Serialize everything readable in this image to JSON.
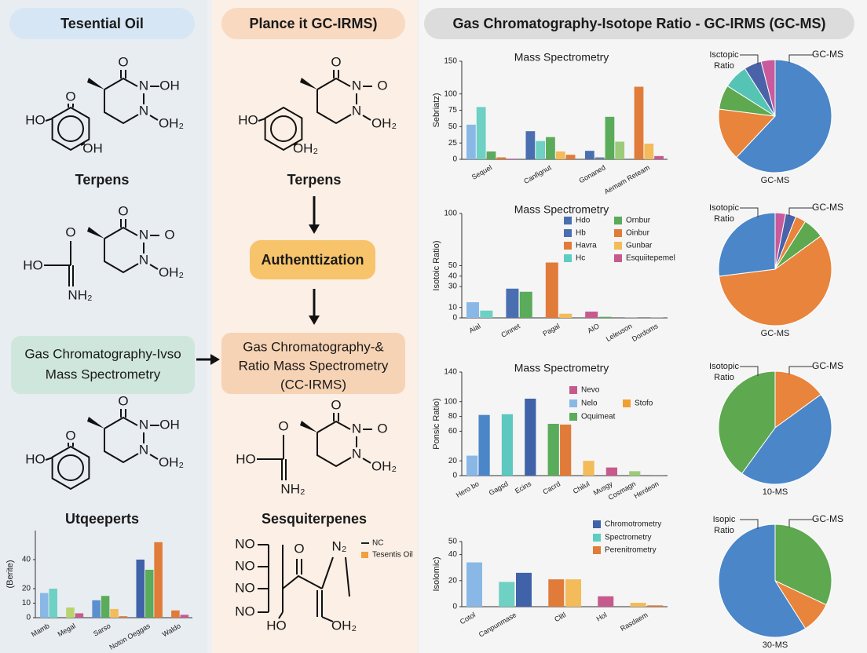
{
  "left": {
    "header": "Tesential Oil",
    "molecule_1": {
      "ketone_o": "O",
      "n1": "N",
      "n1_sub": "OH",
      "n2": "N",
      "n2_sub": "OH₂",
      "ring_top": "O",
      "ring_left": "HO",
      "ring_bottom": "OH"
    },
    "caption_1": "Terpens",
    "molecule_2": {
      "ketone_o": "O",
      "n1": "N",
      "n1_sub": "O",
      "n2": "N",
      "n2_sub": "OH₂",
      "left_top": "O",
      "left_left": "HO",
      "left_bottom": "NH₂"
    },
    "box": [
      "Gas Chromatography-Ivso",
      "Mass Spectrometry"
    ],
    "molecule_3": {
      "ketone_o": "O",
      "n1": "N",
      "n1_sub": "OH",
      "n2": "N",
      "n2_sub": "OH₂",
      "ring_top": "O",
      "ring_left": "HO"
    },
    "caption_2": "Utqeeperts",
    "chart": {
      "ylabel": "(Berite)",
      "ylim": [
        0,
        60
      ],
      "yticks": [
        0,
        10,
        20,
        40
      ],
      "groups": [
        {
          "label": "Mamb",
          "bars": [
            {
              "value": 17,
              "color": "#8ab8e6"
            },
            {
              "value": 20,
              "color": "#6fd0c4"
            }
          ]
        },
        {
          "label": "Megal",
          "bars": [
            {
              "value": 7,
              "color": "#b9d46e"
            },
            {
              "value": 3,
              "color": "#c75a8c"
            }
          ]
        },
        {
          "label": "Sarso",
          "bars": [
            {
              "value": 12,
              "color": "#5b8fd0"
            },
            {
              "value": 15,
              "color": "#5aab5a"
            },
            {
              "value": 6,
              "color": "#f3bb5a"
            },
            {
              "value": 1,
              "color": "#e07b39"
            }
          ]
        },
        {
          "label": "Noton Oeggas",
          "bars": [
            {
              "value": 40,
              "color": "#3f62a8"
            },
            {
              "value": 33,
              "color": "#5aab5a"
            },
            {
              "value": 52,
              "color": "#e07b39"
            }
          ]
        },
        {
          "label": "Waldo",
          "bars": [
            {
              "value": 5,
              "color": "#e07b39"
            },
            {
              "value": 2,
              "color": "#c75a8c"
            }
          ]
        }
      ]
    }
  },
  "middle": {
    "header": "Plance it GC-IRMS)",
    "molecule_1": {
      "ketone_o": "O",
      "n1": "N",
      "n1_sub": "O",
      "n2": "N",
      "n2_sub": "OH₂",
      "ring_left": "HO",
      "ring_bottom": "OH₂"
    },
    "caption_1": "Terpens",
    "step": "Authenttization",
    "box": [
      "Gas Chromatography-&",
      "Ratio Mass Spectrometry",
      "(CC-IRMS)"
    ],
    "molecule_2": {
      "ketone_o": "O",
      "n1": "N",
      "n1_sub": "O",
      "n2": "N",
      "n2_sub": "OH₂",
      "left_top": "O",
      "left_left": "HO",
      "left_bottom": "NH₂"
    },
    "caption_2": "Sesquiterpenes",
    "molecule_3": [
      "NO",
      "NO",
      "NO",
      "NO",
      "O",
      "N₂",
      "HO",
      "OH₂"
    ],
    "legend": [
      {
        "label": "NC",
        "color": "#222222"
      },
      {
        "label": "Tesentis Oil",
        "color": "#f0a040"
      }
    ]
  },
  "right": {
    "header": "Gas Chromatography-Isotope Ratio - GC-IRMS (GC-MS)",
    "panels": [
      {
        "chart": {
          "title": "Mass Spectrometry",
          "ylabel": "Sebriatz)",
          "ylim": [
            0,
            150
          ],
          "yticks": [
            0,
            25,
            50,
            75,
            100,
            150
          ],
          "groups": [
            {
              "label": "Sequel",
              "bars": [
                {
                  "value": 53,
                  "color": "#8ab8e6"
                },
                {
                  "value": 80,
                  "color": "#6fd0c4"
                },
                {
                  "value": 12,
                  "color": "#5aab5a"
                },
                {
                  "value": 3,
                  "color": "#e07b39"
                },
                {
                  "value": 1,
                  "color": "#c75a8c"
                }
              ]
            },
            {
              "label": "Canfignut",
              "bars": [
                {
                  "value": 43,
                  "color": "#4a6fb0"
                },
                {
                  "value": 28,
                  "color": "#6fd0c4"
                },
                {
                  "value": 34,
                  "color": "#5aab5a"
                },
                {
                  "value": 12,
                  "color": "#f3bb5a"
                },
                {
                  "value": 7,
                  "color": "#e07b39"
                }
              ]
            },
            {
              "label": "Gonaned",
              "bars": [
                {
                  "value": 13,
                  "color": "#4a6fb0"
                },
                {
                  "value": 3,
                  "color": "#6b7fa0"
                },
                {
                  "value": 65,
                  "color": "#5aab5a"
                },
                {
                  "value": 27,
                  "color": "#9ccc7a"
                }
              ]
            },
            {
              "label": "Aemam Reteam",
              "bars": [
                {
                  "value": 111,
                  "color": "#e07b39"
                },
                {
                  "value": 24,
                  "color": "#f3bb5a"
                },
                {
                  "value": 5,
                  "color": "#c75a8c"
                }
              ]
            }
          ]
        },
        "pie": {
          "label_left": [
            "Isctopic",
            "Ratio"
          ],
          "label_right": "GC-MS",
          "caption": "GC-MS",
          "slices": [
            {
              "value": 62,
              "color": "#4a86c8"
            },
            {
              "value": 15,
              "color": "#e8843c"
            },
            {
              "value": 7,
              "color": "#5ea84f"
            },
            {
              "value": 7,
              "color": "#55c4b4"
            },
            {
              "value": 5,
              "color": "#4a63a8"
            },
            {
              "value": 4,
              "color": "#c95a9c"
            }
          ]
        }
      },
      {
        "chart": {
          "title": "Mass Spectrometry",
          "ylabel": "Isotoic Ratio)",
          "ylim": [
            0,
            100
          ],
          "yticks": [
            0,
            10,
            30,
            40,
            50,
            100
          ],
          "groups": [
            {
              "label": "Aial",
              "bars": [
                {
                  "value": 15,
                  "color": "#8ab8e6"
                },
                {
                  "value": 7,
                  "color": "#6fd0c4"
                }
              ]
            },
            {
              "label": "Cinnet",
              "bars": [
                {
                  "value": 28,
                  "color": "#4a6fb0"
                },
                {
                  "value": 25,
                  "color": "#5aab5a"
                }
              ]
            },
            {
              "label": "Pagal",
              "bars": [
                {
                  "value": 53,
                  "color": "#e07b39"
                },
                {
                  "value": 4,
                  "color": "#f3bb5a"
                }
              ]
            },
            {
              "label": "AIO",
              "bars": [
                {
                  "value": 6,
                  "color": "#c75a8c"
                },
                {
                  "value": 1,
                  "color": "#5aab5a"
                }
              ]
            },
            {
              "label": "Leleuson",
              "bars": [
                {
                  "value": 0.5,
                  "color": "#999999"
                }
              ]
            },
            {
              "label": "Dordoms",
              "bars": [
                {
                  "value": 0.5,
                  "color": "#999999"
                }
              ]
            }
          ],
          "legend": [
            {
              "label": "Hdo",
              "color": "#4a6fb0"
            },
            {
              "label": "Hb",
              "color": "#4a6fb0"
            },
            {
              "label": "Havra",
              "color": "#e07b39"
            },
            {
              "label": "Hc",
              "color": "#5ccdc0"
            },
            {
              "label": "Ornbur",
              "color": "#5aab5a"
            },
            {
              "label": "Oinbur",
              "color": "#e07b39"
            },
            {
              "label": "Gunbar",
              "color": "#f3bb5a"
            },
            {
              "label": "Esquiitepemel",
              "color": "#c75a8c"
            }
          ]
        },
        "pie": {
          "label_left": [
            "Isotopic",
            "Ratio"
          ],
          "label_right": "GC-MS",
          "caption": "GC-MS",
          "slices": [
            {
              "value": 3,
              "color": "#c95a9c"
            },
            {
              "value": 3,
              "color": "#4a63a8"
            },
            {
              "value": 3,
              "color": "#e8843c"
            },
            {
              "value": 6,
              "color": "#5ea84f"
            },
            {
              "value": 58,
              "color": "#e8843c"
            },
            {
              "value": 27,
              "color": "#4a86c8"
            }
          ]
        }
      },
      {
        "chart": {
          "title": "Mass Spectrometry",
          "ylabel": "Ponsic Ratio)",
          "ylim": [
            0,
            140
          ],
          "yticks": [
            0,
            20,
            60,
            80,
            100,
            140
          ],
          "groups": [
            {
              "label": "Hero bo",
              "bars": [
                {
                  "value": 27,
                  "color": "#8ab8e6"
                },
                {
                  "value": 82,
                  "color": "#4a86c8"
                }
              ]
            },
            {
              "label": "Gagsd",
              "bars": [
                {
                  "value": 83,
                  "color": "#5cc8c0"
                }
              ]
            },
            {
              "label": "Ecins",
              "bars": [
                {
                  "value": 104,
                  "color": "#3f62a8"
                }
              ]
            },
            {
              "label": "Cacrd",
              "bars": [
                {
                  "value": 70,
                  "color": "#5aab5a"
                },
                {
                  "value": 69,
                  "color": "#e07b39"
                }
              ]
            },
            {
              "label": "Chilul",
              "bars": [
                {
                  "value": 20,
                  "color": "#f3bb5a"
                }
              ]
            },
            {
              "label": "Musgy",
              "bars": [
                {
                  "value": 11,
                  "color": "#c75a8c"
                }
              ]
            },
            {
              "label": "Cosmagn",
              "bars": [
                {
                  "value": 6,
                  "color": "#9ccc7a"
                }
              ]
            },
            {
              "label": "Herdeon",
              "bars": [
                {
                  "value": 1,
                  "color": "#999999"
                }
              ]
            }
          ],
          "legend": [
            {
              "label": "Nevo",
              "color": "#c75a8c"
            },
            {
              "label": "Nelo",
              "color": "#8ab8e6"
            },
            {
              "label": "Stofo",
              "color": "#f0a030"
            },
            {
              "label": "Oquimeat",
              "color": "#5aab5a"
            }
          ]
        },
        "pie": {
          "label_left": [
            "Isotopic",
            "Ratio"
          ],
          "label_right": "GC-MS",
          "caption": "10-MS",
          "slices": [
            {
              "value": 15,
              "color": "#e8843c"
            },
            {
              "value": 45,
              "color": "#4a86c8"
            },
            {
              "value": 40,
              "color": "#5ea84f"
            }
          ]
        }
      },
      {
        "chart": {
          "ylabel": "Isolomic)",
          "ylim": [
            0,
            50
          ],
          "yticks": [
            0,
            20,
            40,
            50
          ],
          "groups": [
            {
              "label": "Cotol",
              "bars": [
                {
                  "value": 34,
                  "color": "#8ab8e6"
                }
              ]
            },
            {
              "label": "Canpunmase",
              "bars": [
                {
                  "value": 19,
                  "color": "#6fd0c4"
                },
                {
                  "value": 26,
                  "color": "#3f62a8"
                }
              ]
            },
            {
              "label": "Clitl",
              "bars": [
                {
                  "value": 21,
                  "color": "#e07b39"
                },
                {
                  "value": 21,
                  "color": "#f3bb5a"
                }
              ]
            },
            {
              "label": "Hol",
              "bars": [
                {
                  "value": 8,
                  "color": "#c75a8c"
                }
              ]
            },
            {
              "label": "Rasdaem",
              "bars": [
                {
                  "value": 3,
                  "color": "#f3bb5a"
                },
                {
                  "value": 1,
                  "color": "#e07b39"
                }
              ]
            }
          ],
          "legend": [
            {
              "label": "Chromotrometry",
              "color": "#3f62a8"
            },
            {
              "label": "Spectrometry",
              "color": "#5ccdc0"
            },
            {
              "label": "Perenitrometry",
              "color": "#e07b39"
            }
          ]
        },
        "pie": {
          "label_left": [
            "Isopic",
            "Ratio"
          ],
          "label_right": "GC-MS",
          "caption": "30-MS",
          "slices": [
            {
              "value": 32,
              "color": "#5ea84f"
            },
            {
              "value": 9,
              "color": "#e8843c"
            },
            {
              "value": 59,
              "color": "#4a86c8"
            }
          ]
        }
      }
    ]
  }
}
